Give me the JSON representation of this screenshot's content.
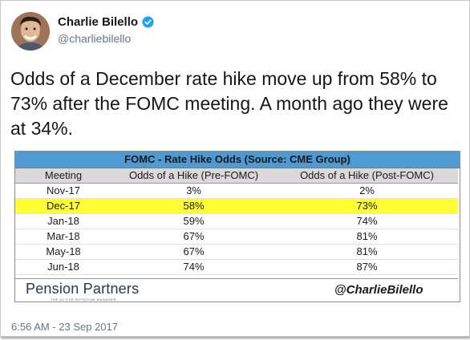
{
  "author": {
    "name": "Charlie Bilello",
    "handle": "@charliebilello",
    "verified_color": "#1da1f2"
  },
  "tweet": {
    "text": "Odds of a December rate hike move up from 58% to 73% after the FOMC meeting. A month ago they were at 34%.",
    "timestamp": "6:56 AM - 23 Sep 2017"
  },
  "table": {
    "title": "FOMC - Rate Hike Odds (Source: CME Group)",
    "headers": [
      "Meeting",
      "Odds of a Hike (Pre-FOMC)",
      "Odds of a Hike (Post-FOMC)"
    ],
    "rows": [
      [
        "Nov-17",
        "3%",
        "2%"
      ],
      [
        "Dec-17",
        "58%",
        "73%"
      ],
      [
        "Jan-18",
        "59%",
        "74%"
      ],
      [
        "Mar-18",
        "67%",
        "81%"
      ],
      [
        "May-18",
        "67%",
        "81%"
      ],
      [
        "Jun-18",
        "74%",
        "87%"
      ]
    ],
    "highlight_color": "#ffff33",
    "title_color": "#4f9ad2"
  },
  "card_footer": {
    "brand": "Pension Partners",
    "brand_tagline": "THE ACTIVE ROTATION MANAGER",
    "twitter_handle": "@CharlieBilello"
  },
  "icons": {
    "verified": "verified-badge-icon",
    "avatar": "profile-photo"
  }
}
